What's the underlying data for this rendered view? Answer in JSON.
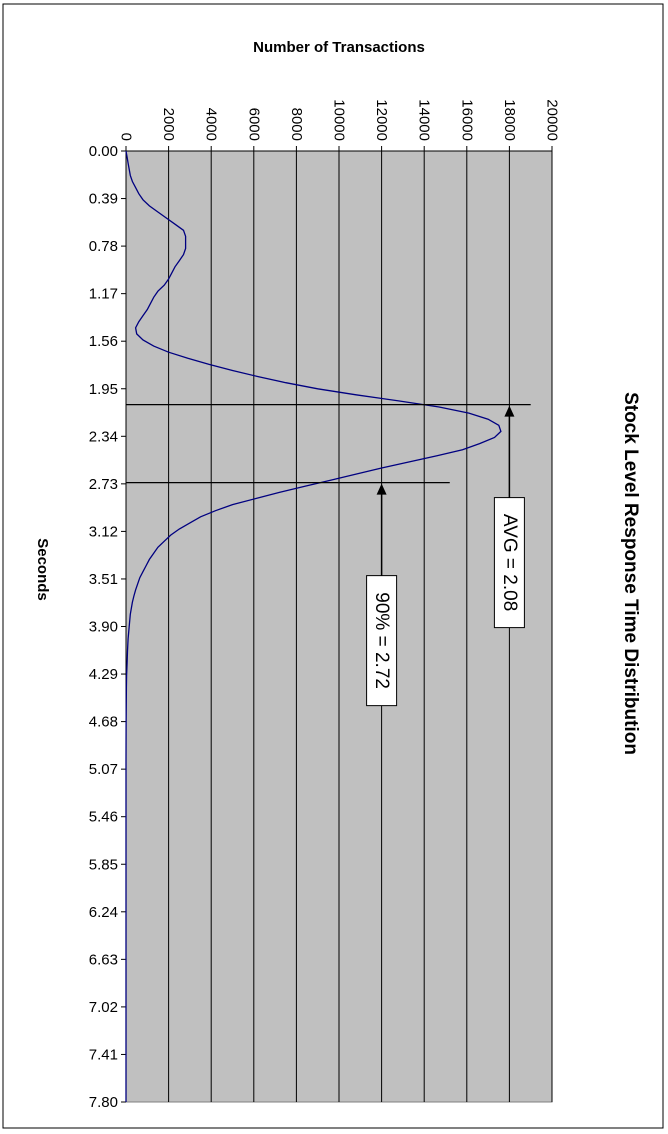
{
  "chart_data": {
    "type": "line",
    "title": "Stock Level Response Time Distribution",
    "xlabel": "Seconds",
    "ylabel": "Number of Transactions",
    "xlim": [
      0,
      7.8
    ],
    "ylim": [
      0,
      20000
    ],
    "x_ticks": [
      "0.00",
      "0.39",
      "0.78",
      "1.17",
      "1.56",
      "1.95",
      "2.34",
      "2.73",
      "3.12",
      "3.51",
      "3.90",
      "4.29",
      "4.68",
      "5.07",
      "5.46",
      "5.85",
      "6.24",
      "6.63",
      "7.02",
      "7.41",
      "7.80"
    ],
    "y_ticks": [
      "0",
      "2000",
      "4000",
      "6000",
      "8000",
      "10000",
      "12000",
      "14000",
      "16000",
      "18000",
      "20000"
    ],
    "grid": true,
    "colors": {
      "plot_bg": "#c0c0c0",
      "line": "#000080",
      "grid": "#000000"
    },
    "series": [
      {
        "x": [
          0.0,
          0.05,
          0.1,
          0.15,
          0.2,
          0.25,
          0.3,
          0.35,
          0.4,
          0.45,
          0.5,
          0.55,
          0.6,
          0.65,
          0.7,
          0.75,
          0.8,
          0.85,
          0.9,
          0.95,
          1.0,
          1.05,
          1.1,
          1.15,
          1.2,
          1.25,
          1.3,
          1.35,
          1.4,
          1.45,
          1.5,
          1.55,
          1.6,
          1.65,
          1.7,
          1.75,
          1.8,
          1.85,
          1.9,
          1.95,
          2.0,
          2.05,
          2.1,
          2.15,
          2.2,
          2.25,
          2.3,
          2.35,
          2.4,
          2.45,
          2.5,
          2.55,
          2.6,
          2.65,
          2.7,
          2.75,
          2.8,
          2.85,
          2.9,
          2.95,
          3.0,
          3.05,
          3.1,
          3.15,
          3.2,
          3.25,
          3.3,
          3.35,
          3.4,
          3.45,
          3.5,
          3.55,
          3.6,
          3.65,
          3.7,
          3.8,
          3.9,
          4.0,
          4.1,
          4.2,
          4.3,
          4.4,
          4.5,
          4.6,
          4.7,
          5.0,
          5.5,
          6.0,
          6.5,
          7.0,
          7.5,
          7.8
        ],
        "values": [
          0,
          50,
          100,
          150,
          200,
          300,
          450,
          600,
          800,
          1100,
          1500,
          1900,
          2300,
          2700,
          2800,
          2800,
          2800,
          2700,
          2500,
          2300,
          2150,
          2000,
          1800,
          1500,
          1300,
          1150,
          1000,
          800,
          600,
          450,
          500,
          800,
          1300,
          2000,
          2900,
          3900,
          5000,
          6200,
          7500,
          9000,
          10800,
          12800,
          14700,
          16100,
          17000,
          17500,
          17600,
          17300,
          16600,
          15800,
          14600,
          13300,
          12000,
          10800,
          9600,
          8400,
          7200,
          6100,
          5000,
          4200,
          3500,
          3000,
          2500,
          2100,
          1800,
          1500,
          1300,
          1100,
          950,
          800,
          650,
          550,
          450,
          370,
          300,
          200,
          150,
          100,
          70,
          50,
          30,
          20,
          15,
          10,
          5,
          0,
          0,
          0,
          0,
          0,
          0,
          0
        ]
      }
    ],
    "annotations": [
      {
        "label": "AVG = 2.08",
        "x": 2.08,
        "line_to": 19000,
        "arrow_from": 16700,
        "arrow_to": 18000
      },
      {
        "label": "90% = 2.72",
        "x": 2.72,
        "line_to": 15200,
        "arrow_from": 13200,
        "arrow_to": 12000
      }
    ]
  }
}
